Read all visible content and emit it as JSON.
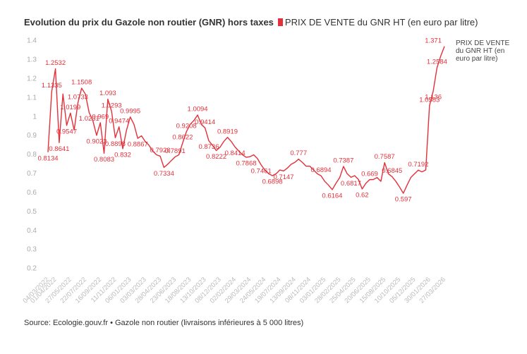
{
  "chart_data": {
    "type": "line",
    "title": "Evolution du prix du Gazole non routier (GNR) hors taxes",
    "source": "Source: Ecologie.gouv.fr • Gazole non routier (livraisons inférieures à 5 000 litres)",
    "categories": [
      "04/03/2022",
      null,
      "01/04/2022",
      null,
      null,
      null,
      "27/05/2022",
      null,
      null,
      null,
      "22/07/2022",
      null,
      null,
      null,
      "16/09/2022",
      null,
      null,
      null,
      "11/11/2022",
      null,
      null,
      null,
      "06/01/2023",
      null,
      null,
      null,
      "03/03/2023",
      null,
      null,
      null,
      "28/04/2023",
      null,
      null,
      null,
      "23/06/2023",
      null,
      null,
      null,
      "18/08/2023",
      null,
      null,
      null,
      "13/10/2023",
      null,
      null,
      null,
      "08/12/2023",
      null,
      null,
      null,
      "02/02/2024",
      null,
      null,
      null,
      "29/03/2024",
      null,
      null,
      null,
      "24/05/2024",
      null,
      null,
      null,
      "19/07/2024",
      null,
      null,
      null,
      "13/09/2024",
      null,
      null,
      null,
      "08/11/2024",
      null,
      null,
      null,
      "03/01/2025",
      null,
      null,
      null,
      "28/02/2025",
      null,
      null,
      null,
      "25/04/2025",
      null,
      null,
      null,
      "20/06/2025",
      null,
      null,
      null,
      "15/08/2025",
      null,
      null,
      null,
      "10/10/2025",
      null,
      null,
      null,
      "05/12/2025",
      null,
      null,
      null,
      "30/01/2026",
      null,
      null,
      null,
      "27/03/2026"
    ],
    "series": [
      {
        "name": "PRIX DE VENTE du GNR HT (en euro par litre)",
        "color": "#e3303a",
        "values": [
          0.8134,
          1.1335,
          1.2532,
          0.8641,
          1.12,
          0.9547,
          1.0199,
          0.93,
          1.0733,
          1.1508,
          1.12,
          1.0231,
          0.98,
          0.9023,
          0.969,
          0.8083,
          1.093,
          1.0293,
          0.8898,
          0.9474,
          0.832,
          0.93,
          0.9995,
          0.96,
          0.8867,
          0.9,
          0.87,
          0.85,
          0.82,
          0.8,
          0.7928,
          0.7334,
          0.75,
          0.77,
          0.7891,
          0.8,
          0.8622,
          0.9208,
          0.96,
          0.98,
          1.0094,
          0.96,
          0.9414,
          0.8736,
          0.85,
          0.8222,
          0.84,
          0.87,
          0.8919,
          0.87,
          0.8414,
          0.82,
          0.8,
          0.7868,
          0.79,
          0.8,
          0.78,
          0.7461,
          0.72,
          0.7,
          0.6898,
          0.7,
          0.72,
          0.7147,
          0.73,
          0.75,
          0.76,
          0.777,
          0.76,
          0.74,
          0.74,
          0.72,
          0.7,
          0.6894,
          0.66,
          0.64,
          0.6164,
          0.65,
          0.68,
          0.7387,
          0.7,
          0.6817,
          0.69,
          0.67,
          0.62,
          0.65,
          0.669,
          0.67,
          0.68,
          0.66,
          0.7587,
          0.7,
          0.6845,
          0.66,
          0.63,
          0.597,
          0.64,
          0.68,
          0.7,
          0.7192,
          0.71,
          0.72,
          1.0583,
          1.136,
          1.2584,
          1.32,
          1.371
        ],
        "value_labels": [
          "0.8134",
          "1.1335",
          "1.2532",
          "0.8641",
          null,
          "0.9547",
          "1.0199",
          null,
          "1.0733",
          "1.1508",
          null,
          "1.0231",
          null,
          "0.9023",
          "0.969",
          "0.8083",
          "1.093",
          "1.0293",
          "0.8898",
          "0.9474",
          "0.832",
          null,
          "0.9995",
          null,
          "0.8867",
          null,
          null,
          null,
          null,
          null,
          "0.7928",
          "0.7334",
          null,
          null,
          "0.7891",
          null,
          "0.8622",
          "0.9208",
          null,
          null,
          "1.0094",
          null,
          "0.9414",
          "0.8736",
          null,
          "0.8222",
          null,
          null,
          "0.8919",
          null,
          "0.8414",
          null,
          null,
          "0.7868",
          null,
          null,
          null,
          "0.7461",
          null,
          null,
          "0.6898",
          null,
          null,
          "0.7147",
          null,
          null,
          null,
          "0.777",
          null,
          null,
          null,
          null,
          null,
          "0.6894",
          null,
          null,
          "0.6164",
          null,
          null,
          "0.7387",
          null,
          "0.6817",
          null,
          null,
          "0.62",
          null,
          "0.669",
          null,
          null,
          null,
          "0.7587",
          null,
          "0.6845",
          null,
          null,
          "0.597",
          null,
          null,
          null,
          "0.7192",
          null,
          null,
          "1.0583",
          "1.136",
          "1.2584",
          null,
          "1.371"
        ]
      }
    ],
    "ylim": [
      0.2,
      1.4
    ],
    "yticks": [
      1.4,
      1.3,
      1.2,
      1.1,
      1,
      0.9,
      0.8,
      0.7,
      0.6,
      0.5,
      0.4,
      0.3,
      0.2
    ],
    "grid": false
  }
}
